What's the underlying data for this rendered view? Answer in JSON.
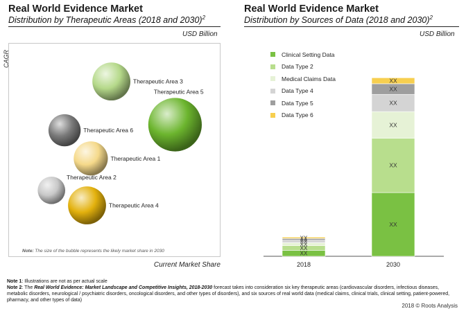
{
  "left": {
    "title": "Real World Evidence Market",
    "subtitle": "Distribution by Therapeutic Areas (2018 and 2030)",
    "subtitle_sup": "2",
    "unit": "USD Billion",
    "ylabel": "CAGR",
    "xlabel": "Current Market Share",
    "note_prefix": "Note:",
    "note_text": " The size of the bubble represents the likely market share in 2030"
  },
  "right": {
    "title": "Real World Evidence Market",
    "subtitle": "Distribution by Sources of Data (2018 and 2030)",
    "subtitle_sup": "2",
    "unit": "USD Billion"
  },
  "chart_data": [
    {
      "type": "scatter",
      "title": "Distribution by Therapeutic Areas (2018 and 2030)",
      "xlabel": "Current Market Share",
      "ylabel": "CAGR",
      "note": "The size of the bubble represents the likely market share in 2030",
      "bubbles": [
        {
          "label": "Therapeutic Area 3",
          "color": "#b5d98a",
          "x": 0.48,
          "y": 0.85,
          "size": 0.55
        },
        {
          "label": "Therapeutic Area 5",
          "color": "#6cb52e",
          "x": 0.82,
          "y": 0.62,
          "size": 0.95
        },
        {
          "label": "Therapeutic Area 6",
          "color": "#7a7a7a",
          "x": 0.23,
          "y": 0.59,
          "size": 0.4
        },
        {
          "label": "Therapeutic Area 1",
          "color": "#f5d98a",
          "x": 0.37,
          "y": 0.44,
          "size": 0.45
        },
        {
          "label": "Therapeutic Area 2",
          "color": "#c8c8c8",
          "x": 0.16,
          "y": 0.27,
          "size": 0.28
        },
        {
          "label": "Therapeutic Area 4",
          "color": "#e3b10d",
          "x": 0.35,
          "y": 0.19,
          "size": 0.55
        }
      ]
    },
    {
      "type": "bar",
      "stacked": true,
      "categories": [
        "2018",
        "2030"
      ],
      "series": [
        {
          "name": "Clinical Setting Data",
          "color": "#7ac143",
          "values": [
            4.5,
            48
          ],
          "labels": [
            "XX",
            "XX"
          ]
        },
        {
          "name": "Data Type 2",
          "color": "#b8de8d",
          "values": [
            3.5,
            41
          ],
          "labels": [
            "XX",
            "XX"
          ]
        },
        {
          "name": "Medical Claims Data",
          "color": "#e6f2d6",
          "values": [
            2.2,
            20
          ],
          "labels": [
            "XX",
            "XX"
          ]
        },
        {
          "name": "Data Type 4",
          "color": "#d4d4d4",
          "values": [
            1.9,
            13
          ],
          "labels": [
            "XX",
            "XX"
          ]
        },
        {
          "name": "Data Type 5",
          "color": "#9e9e9e",
          "values": [
            1.3,
            8
          ],
          "labels": [
            "XX",
            "XX"
          ]
        },
        {
          "name": "Data Type 6",
          "color": "#f7cf4f",
          "values": [
            1.0,
            4.5
          ],
          "labels": [
            "XX",
            "XX"
          ]
        }
      ],
      "ylim": [
        0,
        143
      ],
      "legend": "top-left"
    }
  ],
  "notes": {
    "note1_label": "Note 1",
    "note1_text": ": Illustrations are not as per actual scale",
    "note2_label": "Note 2",
    "note2_mid": ": The ",
    "note2_italic": "Real World Evidence: Market Landscape and Competitive Insights, 2018-2030",
    "note2_text": " forecast takes into consideration six key therapeutic areas (cardiovascular disorders, infectious diseases, metabolic disorders, neurological / psychiatric disorders, oncological disorders, and other types of disorders), and six sources of real world data (medical claims, clinical trials, clinical setting, patient-powered, pharmacy, and other types of data)"
  },
  "copyright": "2018 © Roots Analysis"
}
